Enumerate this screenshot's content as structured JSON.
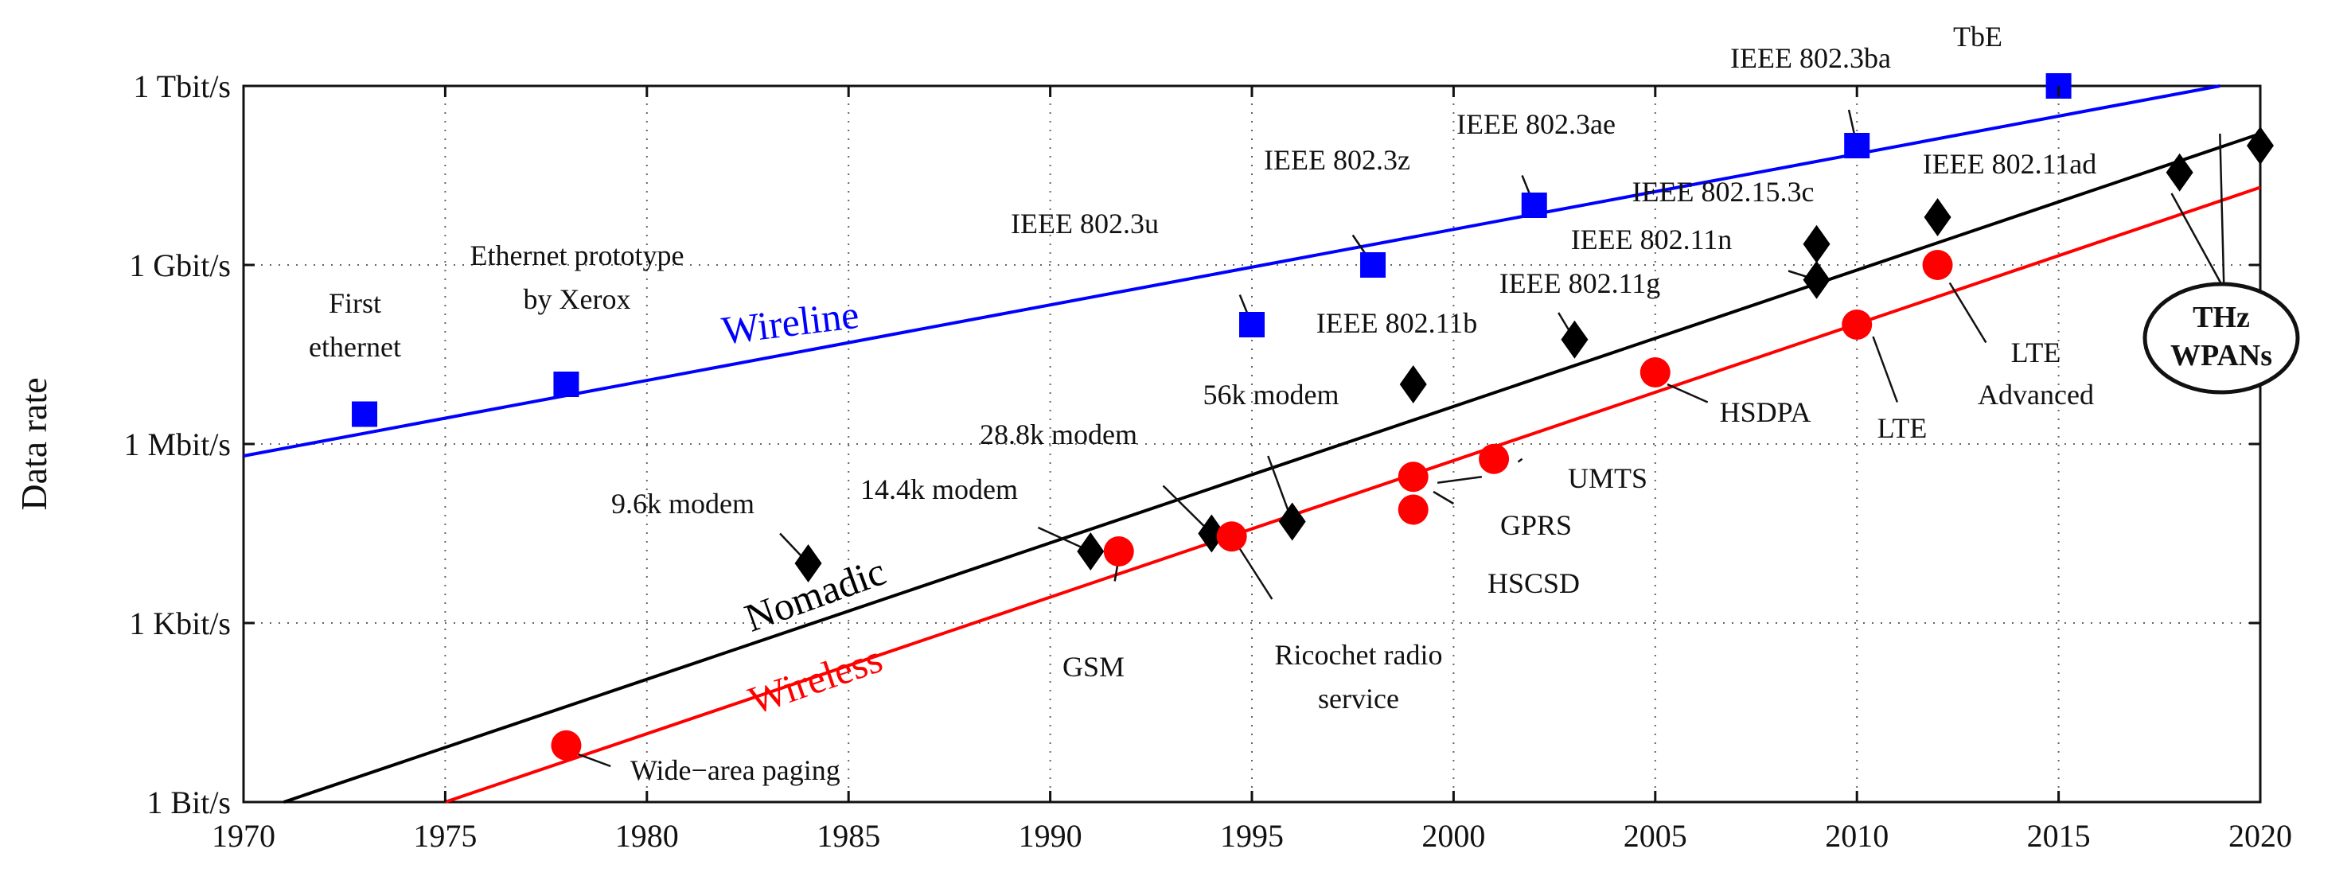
{
  "chart_data": {
    "type": "scatter",
    "title": "",
    "xlabel": "",
    "ylabel": "Data rate",
    "xlim": [
      1970,
      2020
    ],
    "ylim": [
      0,
      12
    ],
    "y_unit_note": "log10(bit/s)",
    "x_ticks": [
      1970,
      1975,
      1980,
      1985,
      1990,
      1995,
      2000,
      2005,
      2010,
      2015,
      2020
    ],
    "x_tick_labels": [
      "1970",
      "1975",
      "1980",
      "1985",
      "1990",
      "1995",
      "2000",
      "2005",
      "2010",
      "2015",
      "2020"
    ],
    "y_ticks": [
      {
        "value": 0,
        "label": "1 Bit/s"
      },
      {
        "value": 3,
        "label": "1 Kbit/s"
      },
      {
        "value": 6,
        "label": "1 Mbit/s"
      },
      {
        "value": 9,
        "label": "1 Gbit/s"
      },
      {
        "value": 12,
        "label": "1 Tbit/s"
      }
    ],
    "grid": true,
    "colors": {
      "wireline": "#0000ff",
      "nomadic": "#000000",
      "wireless": "#ff0000"
    },
    "trend_lines": [
      {
        "name": "Wireline",
        "color": "#0000ff",
        "points": [
          [
            1970,
            5.8
          ],
          [
            2019,
            12.0
          ]
        ]
      },
      {
        "name": "Nomadic",
        "color": "#000000",
        "points": [
          [
            1971,
            0.0
          ],
          [
            2020,
            11.2
          ]
        ]
      },
      {
        "name": "Wireless",
        "color": "#ff0000",
        "points": [
          [
            1975,
            0.0
          ],
          [
            2020,
            10.3
          ]
        ]
      }
    ],
    "series": [
      {
        "name": "Wireline",
        "marker": "square",
        "color": "#0000ff",
        "points": [
          {
            "x": 1973,
            "y": 6.5,
            "label": [
              "First",
              "ethernet"
            ]
          },
          {
            "x": 1978,
            "y": 7.0,
            "label": [
              "Ethernet prototype",
              "by Xerox"
            ]
          },
          {
            "x": 1995,
            "y": 8.0,
            "label": [
              "IEEE 802.3u"
            ]
          },
          {
            "x": 1998,
            "y": 9.0,
            "label": [
              "IEEE 802.3z"
            ]
          },
          {
            "x": 2002,
            "y": 10.0,
            "label": [
              "IEEE 802.3ae"
            ]
          },
          {
            "x": 2010,
            "y": 11.0,
            "label": [
              "IEEE 802.3ba"
            ]
          },
          {
            "x": 2015,
            "y": 12.0,
            "label": [
              "TbE"
            ]
          }
        ]
      },
      {
        "name": "Nomadic",
        "marker": "diamond",
        "color": "#000000",
        "points": [
          {
            "x": 1984,
            "y": 4.0,
            "label": [
              "9.6k modem"
            ]
          },
          {
            "x": 1991,
            "y": 4.2,
            "label": [
              "14.4k modem"
            ]
          },
          {
            "x": 1994,
            "y": 4.5,
            "label": [
              "28.8k modem"
            ]
          },
          {
            "x": 1996,
            "y": 4.7,
            "label": [
              "56k modem"
            ]
          },
          {
            "x": 1999,
            "y": 7.0,
            "label": [
              "IEEE 802.11b"
            ]
          },
          {
            "x": 2003,
            "y": 7.75,
            "label": [
              "IEEE 802.11g"
            ]
          },
          {
            "x": 2009,
            "y": 8.75,
            "label": [
              "IEEE 802.11n"
            ]
          },
          {
            "x": 2009,
            "y": 9.35,
            "label": [
              "IEEE 802.15.3c"
            ]
          },
          {
            "x": 2012,
            "y": 9.8,
            "label": [
              "IEEE 802.11ad"
            ]
          },
          {
            "x": 2018,
            "y": 10.55,
            "label": [
              "THz",
              "WPANs"
            ]
          },
          {
            "x": 2020,
            "y": 11.0,
            "label": []
          }
        ]
      },
      {
        "name": "Wireless",
        "marker": "circle",
        "color": "#ff0000",
        "points": [
          {
            "x": 1978,
            "y": 0.95,
            "label": [
              "Wide−area paging"
            ]
          },
          {
            "x": 1991.7,
            "y": 4.2,
            "label": [
              "GSM"
            ]
          },
          {
            "x": 1994.5,
            "y": 4.45,
            "label": [
              "Ricochet radio",
              "service"
            ]
          },
          {
            "x": 1999,
            "y": 4.9,
            "label": [
              "HSCSD"
            ]
          },
          {
            "x": 1999,
            "y": 5.45,
            "label": [
              "GPRS"
            ]
          },
          {
            "x": 2001,
            "y": 5.75,
            "label": [
              "UMTS"
            ]
          },
          {
            "x": 2005,
            "y": 7.2,
            "label": [
              "HSDPA"
            ]
          },
          {
            "x": 2010,
            "y": 8.0,
            "label": [
              "LTE"
            ]
          },
          {
            "x": 2012,
            "y": 9.0,
            "label": [
              "LTE",
              "Advanced"
            ]
          }
        ]
      }
    ]
  }
}
